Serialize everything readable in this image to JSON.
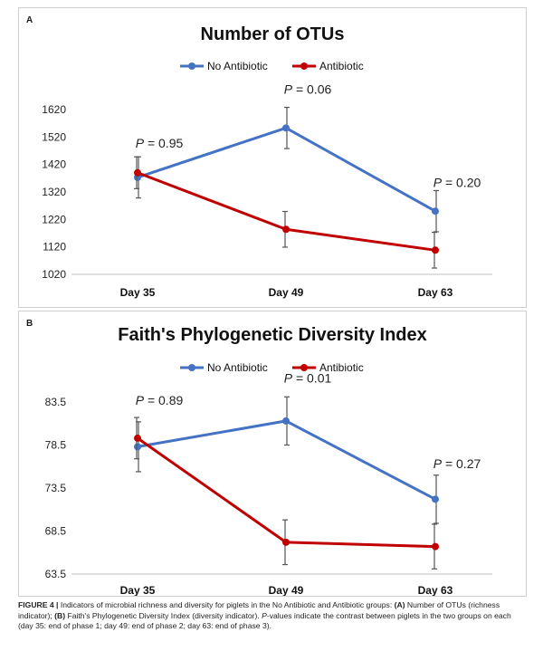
{
  "panels": [
    {
      "letter": "A"
    },
    {
      "letter": "B"
    }
  ],
  "caption": {
    "figure_label": "FIGURE 4 |",
    "text": " Indicators of microbial richness and diversity for piglets in the No Antibiotic and Antibiotic groups: ",
    "a_label": "(A)",
    "a_text": " Number of OTUs (richness indicator); ",
    "b_label": "(B)",
    "b_text": " Faith's Phylogenetic Diversity Index (diversity indicator). ",
    "p_italic": "P",
    "rest": "-values indicate the contrast between piglets in the two groups on each (day 35: end of phase 1; day 49: end of phase 2; day 63: end of phase 3)."
  },
  "colors": {
    "no_antibiotic": "#4472C4",
    "antibiotic": "#C00000",
    "error_bar": "#555555",
    "axis": "#bfbfbf"
  },
  "chart_data": [
    {
      "type": "line",
      "title": "Number of OTUs",
      "categories": [
        "Day 35",
        "Day 49",
        "Day 63"
      ],
      "yticks": [
        1020,
        1120,
        1220,
        1320,
        1420,
        1520,
        1620
      ],
      "ylim": [
        1020,
        1620
      ],
      "grid": false,
      "legend": "top-center",
      "series": [
        {
          "name": "No Antibiotic",
          "color": "#4472C4",
          "values": [
            1373,
            1553,
            1250
          ],
          "errors": [
            75,
            75,
            75
          ]
        },
        {
          "name": "Antibiotic",
          "color": "#C00000",
          "values": [
            1390,
            1184,
            1108
          ],
          "errors": [
            58,
            65,
            65
          ]
        }
      ],
      "annotations": [
        "P = 0.95",
        "P = 0.06",
        "P = 0.20"
      ]
    },
    {
      "type": "line",
      "title": "Faith's Phylogenetic Diversity Index",
      "categories": [
        "Day 35",
        "Day 49",
        "Day 63"
      ],
      "yticks": [
        63.5,
        68.5,
        73.5,
        78.5,
        83.5
      ],
      "ylim": [
        63.5,
        83.5
      ],
      "grid": false,
      "legend": "top-center",
      "series": [
        {
          "name": "No Antibiotic",
          "color": "#4472C4",
          "values": [
            78.3,
            81.3,
            72.2
          ],
          "errors": [
            2.9,
            2.8,
            2.8
          ]
        },
        {
          "name": "Antibiotic",
          "color": "#C00000",
          "values": [
            79.3,
            67.2,
            66.7
          ],
          "errors": [
            2.4,
            2.6,
            2.6
          ]
        }
      ],
      "annotations": [
        "P = 0.89",
        "P = 0.01",
        "P = 0.27"
      ]
    }
  ]
}
